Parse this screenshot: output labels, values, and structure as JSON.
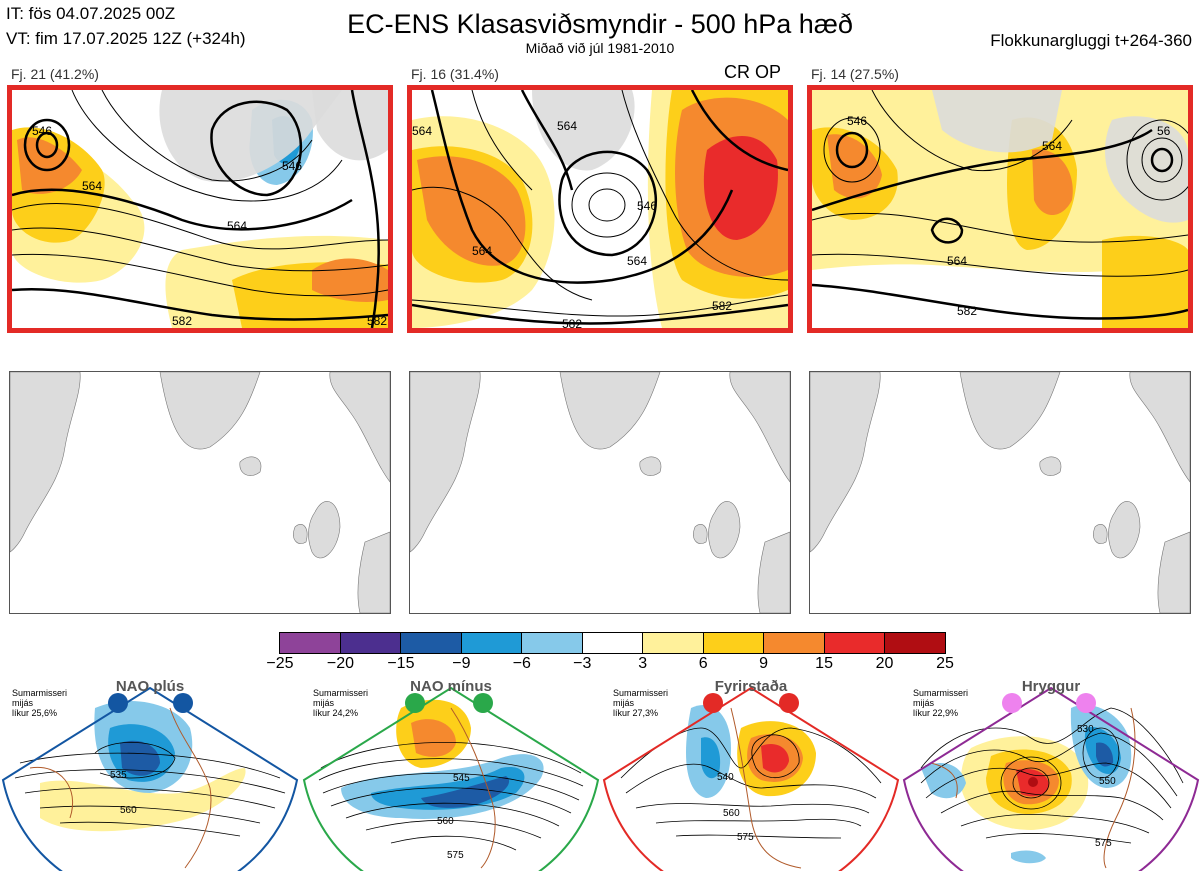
{
  "header": {
    "init_time": "IT: fös 04.07.2025 00Z",
    "valid_time": "VT: fim 17.07.2025 12Z  (+324h)",
    "title": "EC-ENS Klasasviðsmyndir - 500 hPa hæð",
    "subtitle": "Miðað við júl 1981-2010",
    "cluster_window": "Flokkunargluggi t+264-360"
  },
  "clusters": [
    {
      "label": "Fj. 21 (41.2%)",
      "tag": "",
      "contours": [
        "546",
        "546",
        "564",
        "564",
        "582",
        "582"
      ]
    },
    {
      "label": "Fj. 16 (31.4%)",
      "tag": "CR OP",
      "contours": [
        "564",
        "564",
        "546",
        "564",
        "564",
        "582",
        "582"
      ]
    },
    {
      "label": "Fj. 14 (27.5%)",
      "tag": "",
      "contours": [
        "546",
        "564",
        "564",
        "582",
        "56"
      ]
    }
  ],
  "colorbar": {
    "colors": [
      "#8e4399",
      "#4c2f8f",
      "#1d5ba5",
      "#1f9ad6",
      "#86c9ea",
      "#ffffff",
      "#fff19b",
      "#fdcf1a",
      "#f5892e",
      "#e92b2b",
      "#b00d12"
    ],
    "ticks": [
      "−25",
      "−20",
      "−15",
      "−9",
      "−6",
      "−3",
      "3",
      "6",
      "9",
      "15",
      "20",
      "25"
    ]
  },
  "regimes": [
    {
      "name": "NAO plús",
      "season": "Sumarmisseri",
      "mean": "mijás",
      "likelihood": "líkur 25,6%",
      "color": "#1356a2",
      "contours": [
        "535",
        "560"
      ]
    },
    {
      "name": "NAO mínus",
      "season": "Sumarmisseri",
      "mean": "mijás",
      "likelihood": "líkur 24,2%",
      "color": "#2aa84a",
      "contours": [
        "545",
        "560",
        "575"
      ]
    },
    {
      "name": "Fyrirstaða",
      "season": "Sumarmisseri",
      "mean": "mijás",
      "likelihood": "líkur 27,3%",
      "color": "#e32a26",
      "contours": [
        "540",
        "560",
        "575"
      ]
    },
    {
      "name": "Hryggur",
      "season": "Sumarmisseri",
      "mean": "mijás",
      "likelihood": "líkur 22,9%",
      "color": "#8e2a94",
      "contours": [
        "530",
        "550",
        "575"
      ]
    }
  ]
}
